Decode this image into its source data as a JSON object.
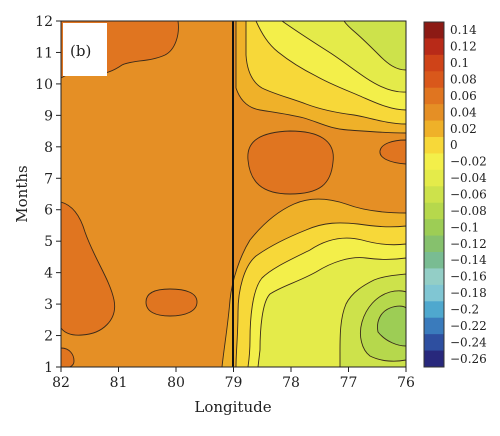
{
  "chart_data": {
    "type": "heatmap",
    "panel_label": "(b)",
    "xlabel": "Longitude",
    "ylabel": "Months",
    "x_ticks": [
      82,
      81,
      80,
      79,
      78,
      77,
      76
    ],
    "y_ticks": [
      1,
      2,
      3,
      4,
      5,
      6,
      7,
      8,
      9,
      10,
      11,
      12
    ],
    "xlim": [
      82,
      76
    ],
    "ylim": [
      1,
      12
    ],
    "vertical_line_x": 79,
    "colorbar": {
      "levels": [
        0.14,
        0.12,
        0.1,
        0.08,
        0.06,
        0.04,
        0.02,
        0,
        -0.02,
        -0.04,
        -0.06,
        -0.08,
        -0.1,
        -0.12,
        -0.14,
        -0.16,
        -0.18,
        -0.2,
        -0.22,
        -0.24,
        -0.26
      ],
      "labels": [
        "0.14",
        "0.12",
        "0.1",
        "0.08",
        "0.06",
        "0.04",
        "0.02",
        "0",
        "−0.02",
        "−0.04",
        "−0.06",
        "−0.08",
        "−0.1",
        "−0.12",
        "−0.14",
        "−0.16",
        "−0.18",
        "−0.2",
        "−0.22",
        "−0.24",
        "−0.26"
      ],
      "colors": [
        "#8c1a14",
        "#b82a18",
        "#cf4318",
        "#d9581b",
        "#e07520",
        "#e58f25",
        "#efb129",
        "#f7d839",
        "#f3ef4a",
        "#e4eb4a",
        "#cde24b",
        "#b6d84c",
        "#9dcd55",
        "#86c16d",
        "#79bc92",
        "#93cec6",
        "#80c6d3",
        "#4fa8ce",
        "#3a7bbc",
        "#2e4fa0",
        "#28287c"
      ]
    },
    "regions": [
      {
        "level": 0.04,
        "desc": "background"
      },
      {
        "level": 0.06,
        "desc": "upper-left band months 10-12, longitude 82-80"
      },
      {
        "level": 0.06,
        "desc": "lower-left blob months 2.5-6.3, longitude 82-81"
      },
      {
        "level": 0.06,
        "desc": "small blob month 1, longitude 82"
      },
      {
        "level": 0.06,
        "desc": "small blob month 3, longitude 80"
      },
      {
        "level": 0.06,
        "desc": "blob months 6.7-8.3, longitude 78.5-77.5"
      },
      {
        "level": 0.06,
        "desc": "small blob month 8, longitude 76.3"
      },
      {
        "level": 0.02,
        "desc": "upper-right contours months 6.5-12, longitude 79-76"
      },
      {
        "level": 0.0,
        "desc": "upper-right"
      },
      {
        "level": -0.02,
        "desc": "upper-right"
      },
      {
        "level": -0.04,
        "desc": "upper-right"
      },
      {
        "level": -0.06,
        "desc": "upper-right core near 76, month 11.5"
      },
      {
        "level": 0.02,
        "desc": "lower-right contours months 1-5.8, longitude 79-76"
      },
      {
        "level": 0.0,
        "desc": "lower-right"
      },
      {
        "level": -0.02,
        "desc": "lower-right"
      },
      {
        "level": -0.04,
        "desc": "lower-right"
      },
      {
        "level": -0.06,
        "desc": "lower-right"
      },
      {
        "level": -0.08,
        "desc": "lower-right"
      },
      {
        "level": -0.1,
        "desc": "lower-right core near 76.5, month 2.8"
      }
    ]
  }
}
